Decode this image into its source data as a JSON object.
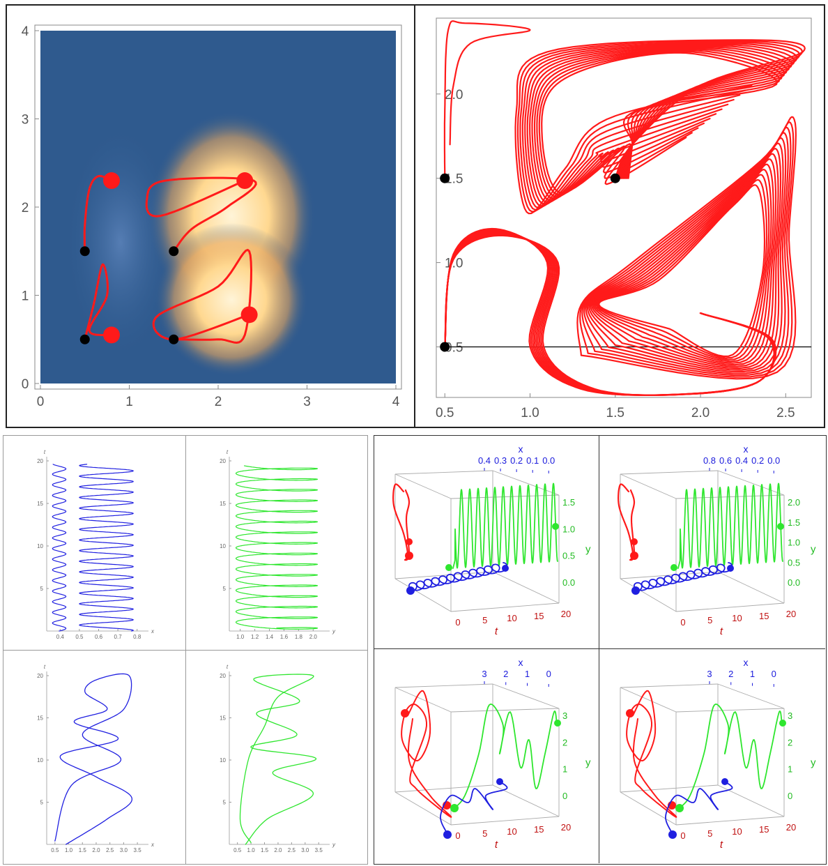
{
  "colors": {
    "trajectory": "#ff1a1a",
    "x_series": "#1f1fe0",
    "y_series": "#2ee62e",
    "start_marker": "#000000",
    "heat_bg": "#2f5a8e",
    "heat_hot": "#ffd890"
  },
  "chart_data": [
    {
      "id": "density-map",
      "type": "scatter",
      "title": "",
      "xlabel": "",
      "ylabel": "",
      "xlim": [
        0,
        4
      ],
      "ylim": [
        0,
        4
      ],
      "x_ticks": [
        "0",
        "1",
        "2",
        "3",
        "4"
      ],
      "y_ticks": [
        "0",
        "1",
        "2",
        "3",
        "4"
      ],
      "series": [
        {
          "values": [
            [
              0.5,
              1.5
            ],
            [
              0.5,
              1.8
            ],
            [
              0.55,
              2.2
            ],
            [
              0.65,
              2.35
            ],
            [
              0.8,
              2.3
            ]
          ],
          "end": [
            0.8,
            2.3
          ],
          "start": [
            0.5,
            1.5
          ]
        },
        {
          "values": [
            [
              1.5,
              1.5
            ],
            [
              1.7,
              1.75
            ],
            [
              2.1,
              2.0
            ],
            [
              2.4,
              2.3
            ],
            [
              1.4,
              2.3
            ],
            [
              1.2,
              2.1
            ],
            [
              1.35,
              1.9
            ],
            [
              2.3,
              2.3
            ]
          ],
          "end": [
            2.3,
            2.3
          ],
          "start": [
            1.5,
            1.5
          ]
        },
        {
          "values": [
            [
              0.5,
              0.5
            ],
            [
              0.6,
              0.9
            ],
            [
              0.7,
              1.35
            ],
            [
              0.75,
              1.0
            ],
            [
              0.55,
              0.6
            ],
            [
              0.8,
              0.55
            ]
          ],
          "end": [
            0.8,
            0.55
          ],
          "start": [
            0.5,
            0.5
          ]
        },
        {
          "values": [
            [
              1.5,
              0.5
            ],
            [
              2.0,
              0.5
            ],
            [
              2.3,
              0.55
            ],
            [
              2.35,
              1.5
            ],
            [
              2.0,
              1.1
            ],
            [
              1.3,
              0.75
            ],
            [
              1.5,
              0.5
            ],
            [
              2.35,
              0.78
            ]
          ],
          "end": [
            2.35,
            0.78
          ],
          "start": [
            1.5,
            0.5
          ]
        }
      ]
    },
    {
      "id": "phase-portrait",
      "type": "line",
      "title": "",
      "xlabel": "",
      "ylabel": "",
      "xlim": [
        0.45,
        2.65
      ],
      "ylim": [
        0.2,
        2.45
      ],
      "x_ticks": [
        "0.5",
        "1.0",
        "1.5",
        "2.0",
        "2.5"
      ],
      "y_ticks": [
        "0.5",
        "1.0",
        "1.5",
        "2.0"
      ],
      "reference_line_y": 0.5,
      "start_points": [
        [
          0.5,
          1.5
        ],
        [
          1.5,
          1.5
        ],
        [
          0.5,
          0.5
        ]
      ]
    },
    {
      "id": "time-x-regular",
      "type": "line",
      "xlabel": "x",
      "ylabel": "t",
      "xlim": [
        0.33,
        0.83
      ],
      "ylim": [
        0,
        20
      ],
      "x_ticks": [
        "0.4",
        "0.5",
        "0.6",
        "0.7",
        "0.8"
      ],
      "y_ticks": [
        "5",
        "10",
        "15",
        "20"
      ]
    },
    {
      "id": "time-y-regular",
      "type": "line",
      "xlabel": "y",
      "ylabel": "t",
      "xlim": [
        0.85,
        2.15
      ],
      "ylim": [
        0,
        20
      ],
      "x_ticks": [
        "1.0",
        "1.2",
        "1.4",
        "1.6",
        "1.8",
        "2.0"
      ],
      "y_ticks": [
        "5",
        "10",
        "15",
        "20"
      ]
    },
    {
      "id": "time-x-chaotic",
      "type": "line",
      "xlabel": "x",
      "ylabel": "t",
      "xlim": [
        0.2,
        3.7
      ],
      "ylim": [
        0,
        20
      ],
      "x_ticks": [
        "0.5",
        "1.0",
        "1.5",
        "2.0",
        "2.5",
        "3.0",
        "3.5"
      ],
      "y_ticks": [
        "5",
        "10",
        "15",
        "20"
      ]
    },
    {
      "id": "time-y-chaotic",
      "type": "line",
      "xlabel": "y",
      "ylabel": "t",
      "xlim": [
        0.2,
        3.7
      ],
      "ylim": [
        0,
        20
      ],
      "x_ticks": [
        "0.5",
        "1.0",
        "1.5",
        "2.0",
        "2.5",
        "3.0",
        "3.5"
      ],
      "y_ticks": [
        "5",
        "10",
        "15",
        "20"
      ]
    },
    {
      "id": "box-3d-a",
      "type": "line",
      "x_axis_label": "x",
      "y_axis_label": "y",
      "t_axis_label": "t",
      "x_ticks": [
        "0.4",
        "0.3",
        "0.2",
        "0.1",
        "0.0"
      ],
      "y_ticks": [
        "0.0",
        "0.5",
        "1.0",
        "1.5"
      ],
      "t_ticks": [
        "0",
        "5",
        "10",
        "15",
        "20"
      ]
    },
    {
      "id": "box-3d-b",
      "type": "line",
      "x_axis_label": "x",
      "y_axis_label": "y",
      "t_axis_label": "t",
      "x_ticks": [
        "0.8",
        "0.6",
        "0.4",
        "0.2",
        "0.0"
      ],
      "y_ticks": [
        "0.0",
        "0.5",
        "1.0",
        "1.5",
        "2.0"
      ],
      "t_ticks": [
        "0",
        "5",
        "10",
        "15",
        "20"
      ]
    },
    {
      "id": "box-3d-c",
      "type": "line",
      "x_axis_label": "x",
      "y_axis_label": "y",
      "t_axis_label": "t",
      "x_ticks": [
        "3",
        "2",
        "1",
        "0"
      ],
      "y_ticks": [
        "0",
        "1",
        "2",
        "3"
      ],
      "t_ticks": [
        "0",
        "5",
        "10",
        "15",
        "20"
      ]
    },
    {
      "id": "box-3d-d",
      "type": "line",
      "x_axis_label": "x",
      "y_axis_label": "y",
      "t_axis_label": "t",
      "x_ticks": [
        "3",
        "2",
        "1",
        "0"
      ],
      "y_ticks": [
        "0",
        "1",
        "2",
        "3"
      ],
      "t_ticks": [
        "0",
        "5",
        "10",
        "15",
        "20"
      ]
    }
  ]
}
